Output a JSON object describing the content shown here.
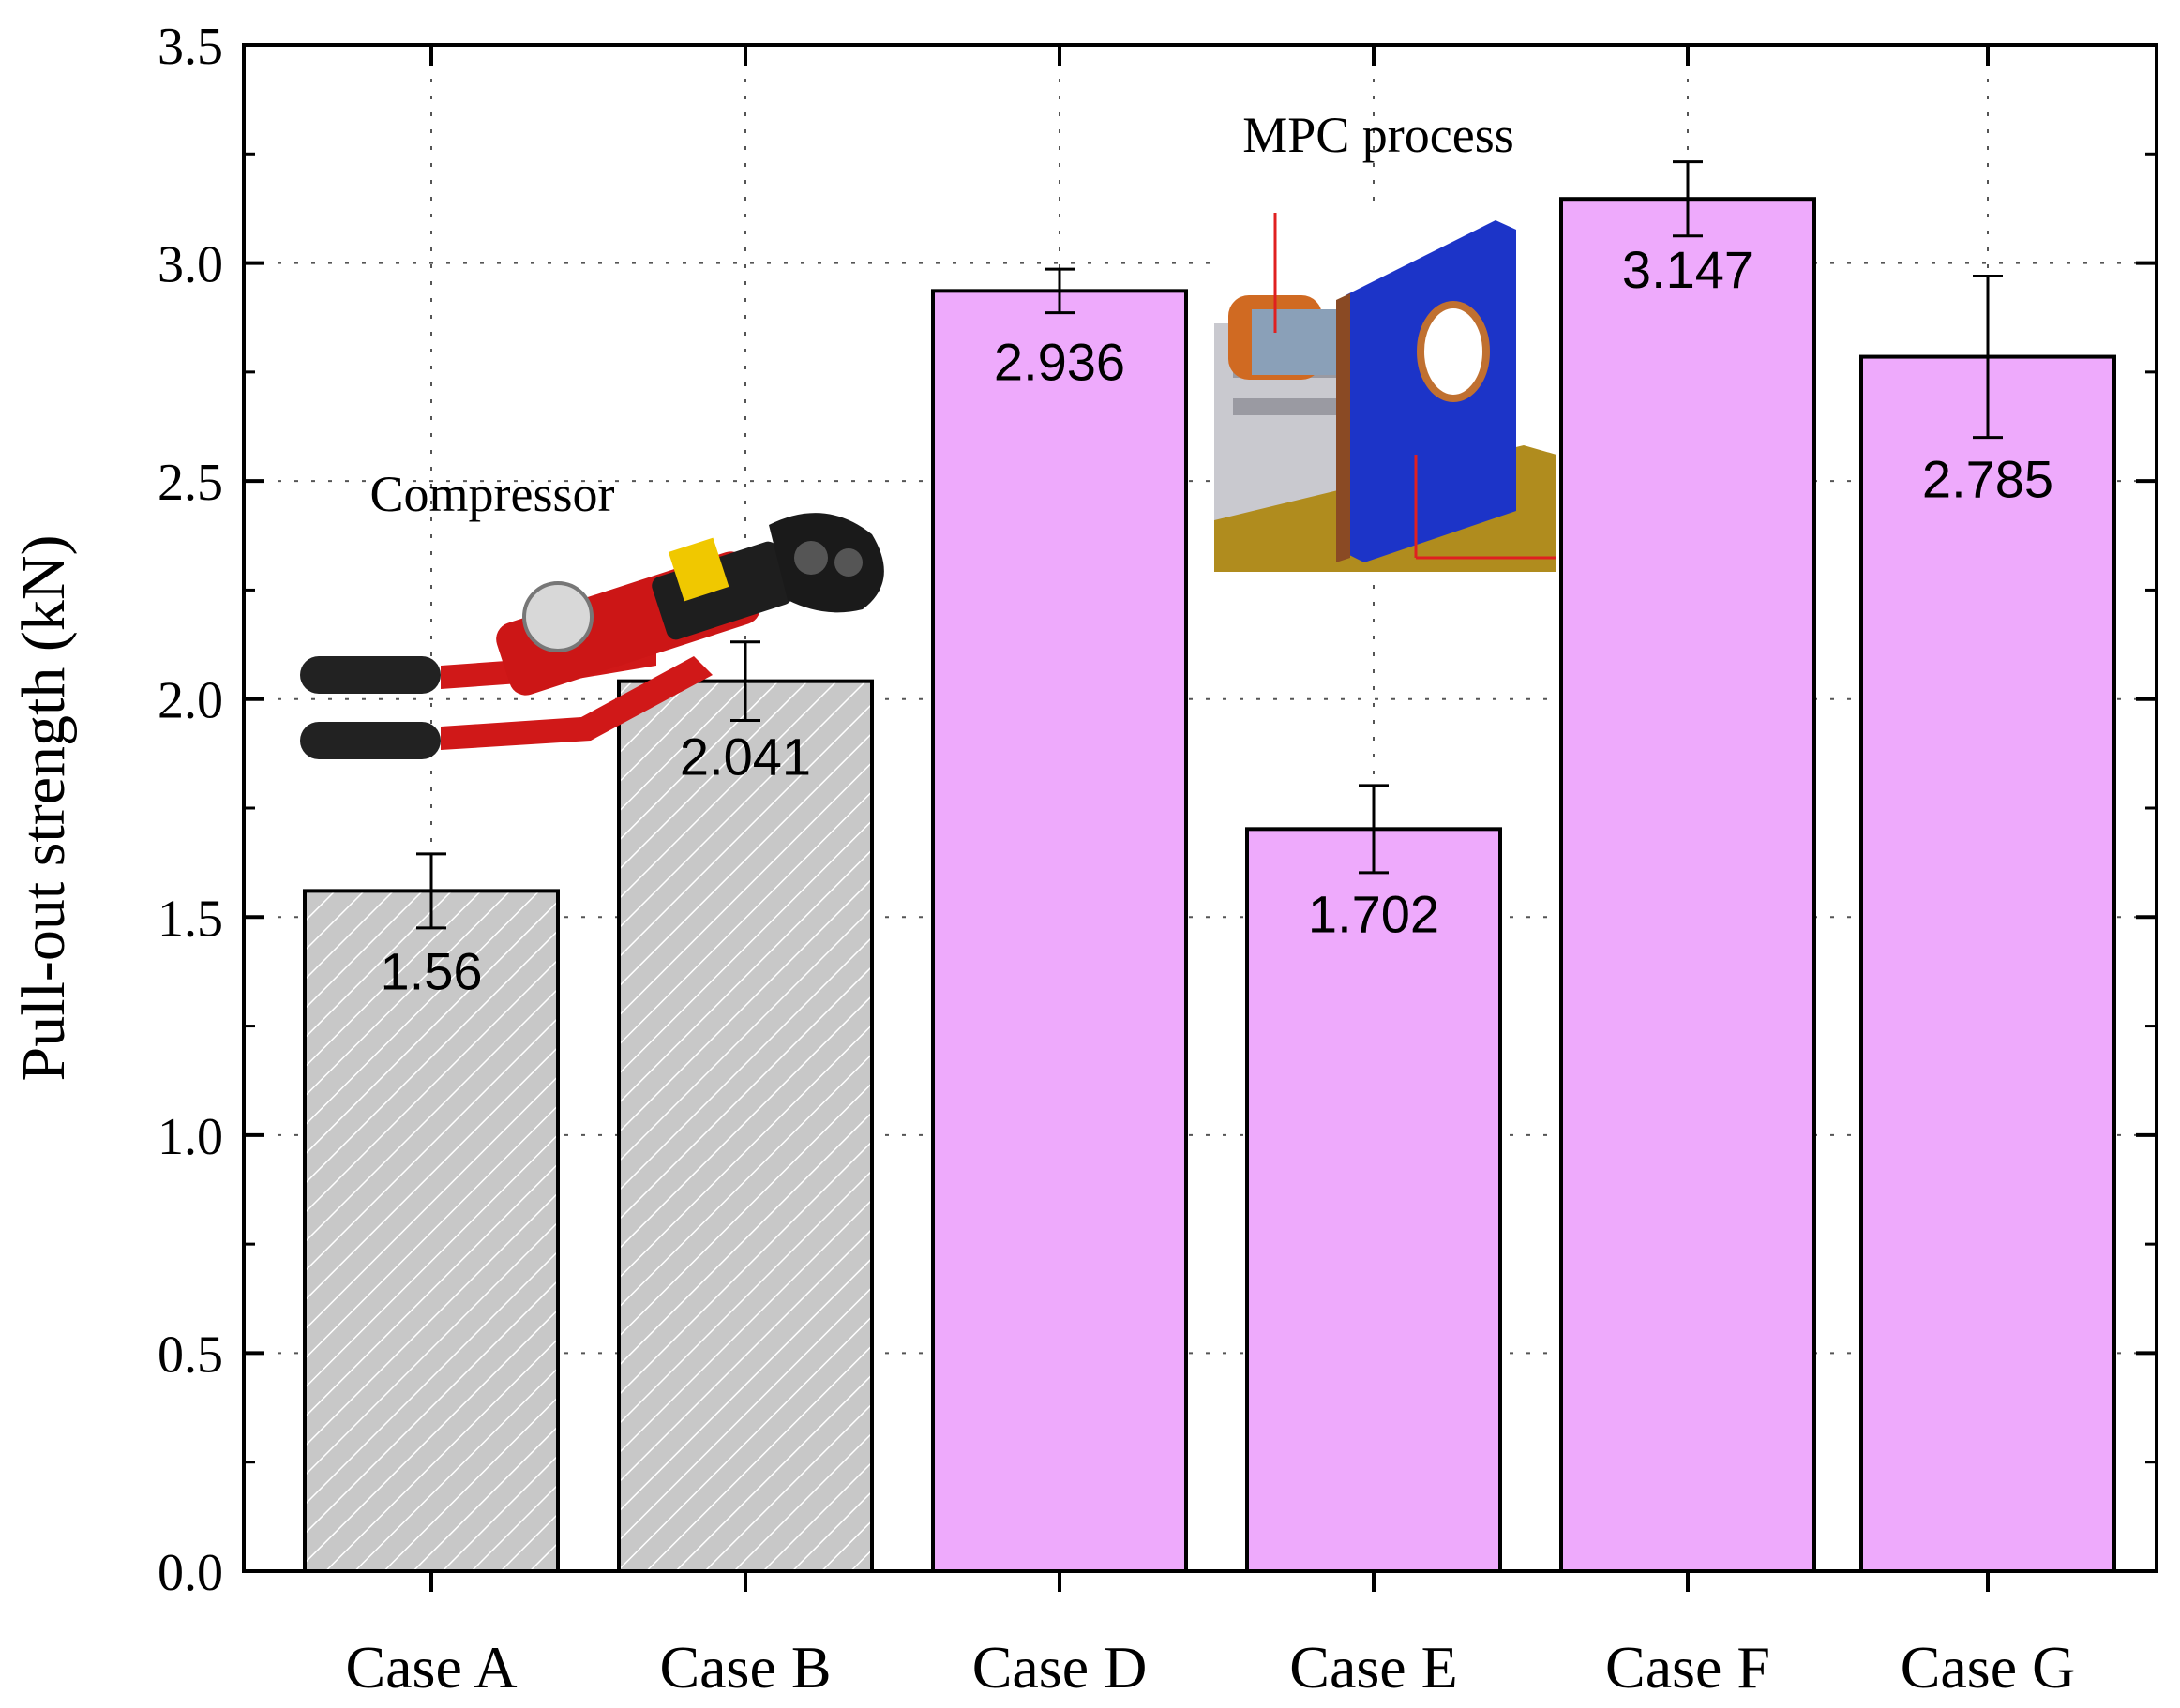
{
  "chart_data": {
    "type": "bar",
    "title": "",
    "xlabel": "",
    "ylabel": "Pull-out strength (kN)",
    "ylim": [
      0,
      3.5
    ],
    "yticks": [
      0.0,
      0.5,
      1.0,
      1.5,
      2.0,
      2.5,
      3.0,
      3.5
    ],
    "ytick_labels": [
      "0.0",
      "0.5",
      "1.0",
      "1.5",
      "2.0",
      "2.5",
      "3.0",
      "3.5"
    ],
    "grid": true,
    "categories": [
      "Case A",
      "Case B",
      "Case D",
      "Case E",
      "Case F",
      "Case G"
    ],
    "values": [
      1.56,
      2.041,
      2.936,
      1.702,
      3.147,
      2.785
    ],
    "value_labels": [
      "1.56",
      "2.041",
      "2.936",
      "1.702",
      "3.147",
      "2.785"
    ],
    "errors": [
      0.085,
      0.09,
      0.05,
      0.1,
      0.085,
      0.185
    ],
    "groups": [
      {
        "label": "Compressor",
        "categories": [
          "Case A",
          "Case B"
        ],
        "color": "#c8c8c8",
        "pattern": "hatched"
      },
      {
        "label": "MPC process",
        "categories": [
          "Case D",
          "Case E",
          "Case F",
          "Case G"
        ],
        "color": "#eeaafc",
        "pattern": "solid"
      }
    ]
  },
  "colors": {
    "gray_bar": "#c8c8c8",
    "hatch": "#ffffff",
    "pink_bar": "#eeaafc",
    "axis": "#000000",
    "grid": "#555555"
  },
  "icons": [
    "hydraulic-crimper-image",
    "mpc-machine-render-image"
  ]
}
